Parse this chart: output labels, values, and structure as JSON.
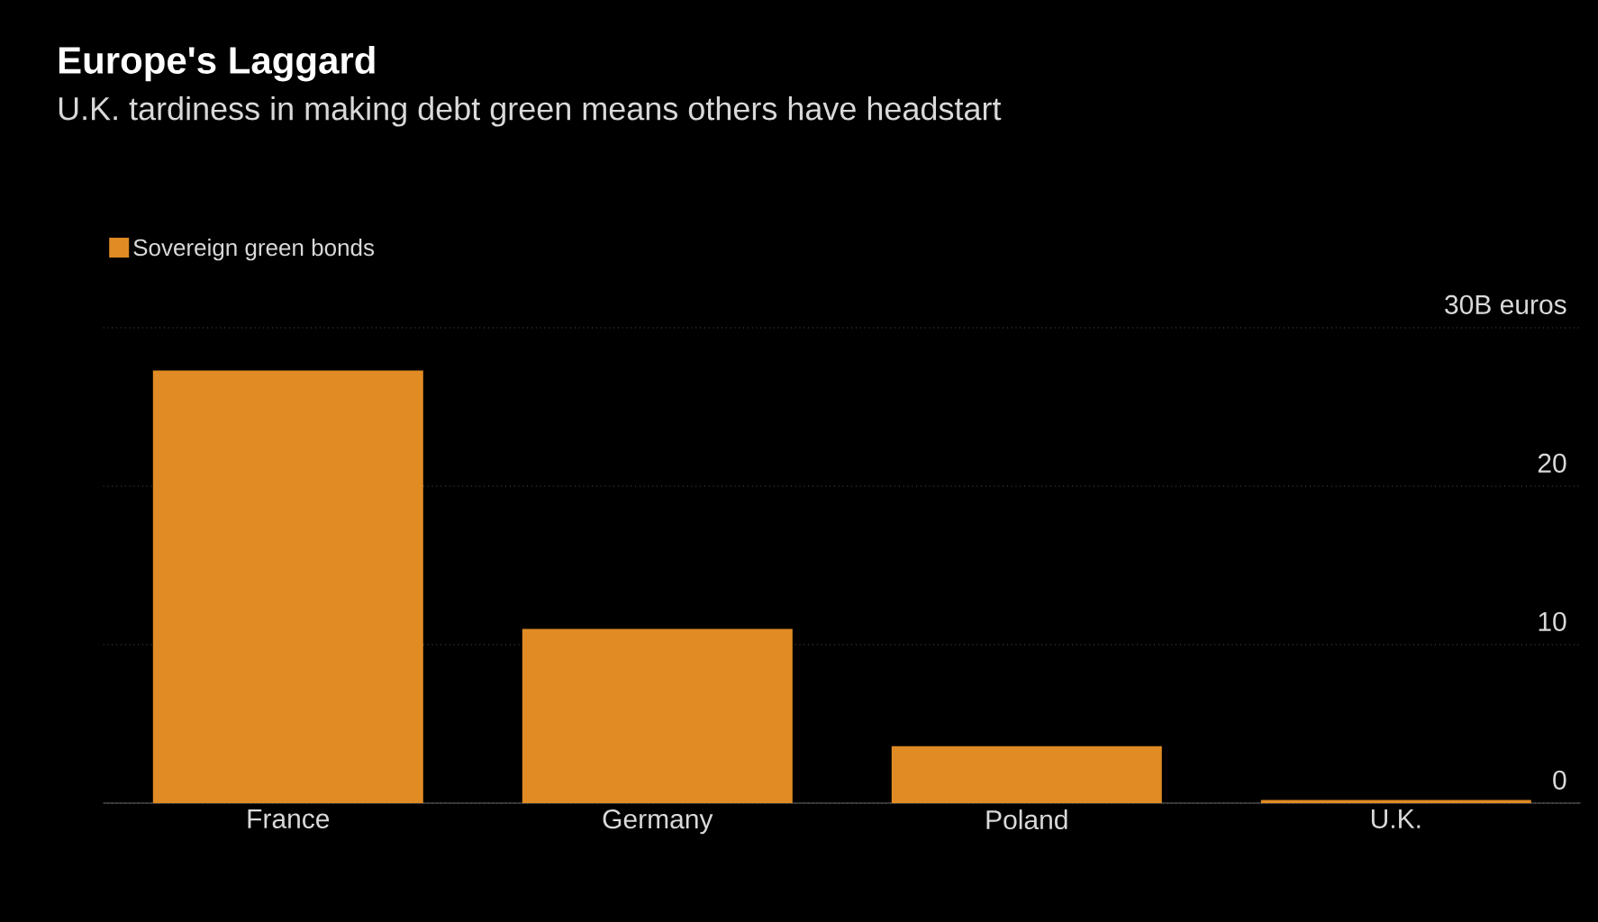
{
  "chart_data": {
    "type": "bar",
    "title": "Europe's Laggard",
    "subtitle": "U.K. tardiness in making debt green means others have headstart",
    "categories": [
      "France",
      "Germany",
      "Poland",
      "U.K."
    ],
    "series": [
      {
        "name": "Sovereign green bonds",
        "color": "#e08b24",
        "values": [
          27.3,
          11.0,
          3.6,
          0.2
        ]
      }
    ],
    "ylim": [
      0,
      30
    ],
    "yticks": [
      0,
      10,
      20,
      {
        "value": 30,
        "label": "30B euros"
      }
    ],
    "grid": "y",
    "legend": "top left"
  }
}
